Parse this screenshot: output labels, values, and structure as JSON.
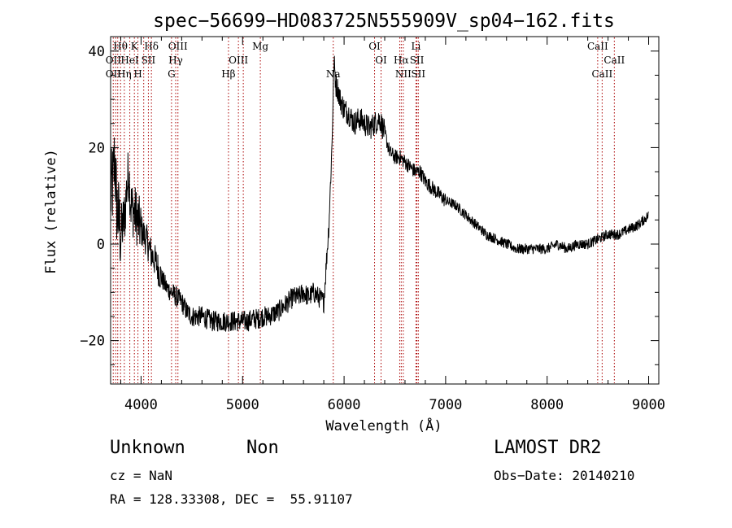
{
  "chart_data": {
    "type": "line",
    "title": "spec−56699−HD083725N555909V_sp04−162.fits",
    "xlabel": "Wavelength (Å)",
    "ylabel": "Flux (relative)",
    "xlim": [
      3700,
      9100
    ],
    "ylim": [
      -29,
      43
    ],
    "grid": false,
    "xticks": [
      {
        "value": 4000,
        "label": "4000"
      },
      {
        "value": 5000,
        "label": "5000"
      },
      {
        "value": 6000,
        "label": "6000"
      },
      {
        "value": 7000,
        "label": "7000"
      },
      {
        "value": 8000,
        "label": "8000"
      },
      {
        "value": 9000,
        "label": "9000"
      }
    ],
    "yticks": [
      {
        "value": -20,
        "label": "−20"
      },
      {
        "value": 0,
        "label": "0"
      },
      {
        "value": 20,
        "label": "20"
      },
      {
        "value": 40,
        "label": "40"
      }
    ],
    "lines": [
      3726,
      3750,
      3770,
      3798,
      3835,
      3889,
      3934,
      3969,
      4026,
      4072,
      4102,
      4300,
      4341,
      4363,
      4861,
      4959,
      5007,
      5175,
      5893,
      6300,
      6364,
      6548,
      6563,
      6583,
      6708,
      6717,
      6731,
      8498,
      8542,
      8662
    ],
    "line_labels": [
      {
        "text": "Hθ",
        "x": 3797,
        "row": 0
      },
      {
        "text": "K",
        "x": 3934,
        "row": 0
      },
      {
        "text": "Hδ",
        "x": 4102,
        "row": 0
      },
      {
        "text": "OIII",
        "x": 4363,
        "row": 0
      },
      {
        "text": "Mg",
        "x": 5175,
        "row": 0
      },
      {
        "text": "OI",
        "x": 6300,
        "row": 0
      },
      {
        "text": "Li",
        "x": 6708,
        "row": 0
      },
      {
        "text": "CaII",
        "x": 8498,
        "row": 0
      },
      {
        "text": "OII",
        "x": 3727,
        "row": 1
      },
      {
        "text": "HeI",
        "x": 3889,
        "row": 1
      },
      {
        "text": "SII",
        "x": 4072,
        "row": 1
      },
      {
        "text": "Hγ",
        "x": 4341,
        "row": 1
      },
      {
        "text": "OIII",
        "x": 4959,
        "row": 1
      },
      {
        "text": "OI",
        "x": 6364,
        "row": 1
      },
      {
        "text": "Hα",
        "x": 6563,
        "row": 1
      },
      {
        "text": "SII",
        "x": 6717,
        "row": 1
      },
      {
        "text": "CaII",
        "x": 8662,
        "row": 1
      },
      {
        "text": "OII",
        "x": 3727,
        "row": 2
      },
      {
        "text": "Hη",
        "x": 3835,
        "row": 2
      },
      {
        "text": "H",
        "x": 3969,
        "row": 2
      },
      {
        "text": "G",
        "x": 4300,
        "row": 2
      },
      {
        "text": "Hβ",
        "x": 4861,
        "row": 2
      },
      {
        "text": "Na",
        "x": 5893,
        "row": 2
      },
      {
        "text": "NII",
        "x": 6583,
        "row": 2
      },
      {
        "text": "SII",
        "x": 6731,
        "row": 2
      },
      {
        "text": "CaII",
        "x": 8542,
        "row": 2
      }
    ],
    "series": [
      {
        "x": [
          3700,
          3720,
          3740,
          3760,
          3780,
          3800,
          3820,
          3840,
          3860,
          3880,
          3900,
          3950,
          4000,
          4050,
          4100,
          4150,
          4200,
          4250,
          4300,
          4350,
          4400,
          4450,
          4500,
          4550,
          4600,
          4650,
          4700,
          4750,
          4800,
          4850,
          4900,
          4950,
          5000,
          5050,
          5100,
          5150,
          5200,
          5250,
          5300,
          5350,
          5400,
          5450,
          5500,
          5550,
          5600,
          5650,
          5700,
          5750,
          5800,
          5850,
          5880,
          5900,
          5920,
          5940,
          5960,
          5980,
          6000,
          6050,
          6100,
          6150,
          6200,
          6250,
          6300,
          6350,
          6400,
          6450,
          6500,
          6550,
          6600,
          6650,
          6700,
          6750,
          6800,
          6850,
          6900,
          6950,
          7000,
          7100,
          7200,
          7300,
          7400,
          7500,
          7600,
          7700,
          7800,
          7900,
          8000,
          8100,
          8200,
          8300,
          8400,
          8500,
          8600,
          8700,
          8800,
          8900,
          9000
        ],
        "y": [
          10,
          12,
          18,
          8,
          5,
          2,
          4,
          6,
          12,
          15,
          8,
          6,
          3,
          1,
          -2,
          -4,
          -7,
          -9,
          -10,
          -11,
          -12,
          -14,
          -15,
          -15,
          -15,
          -15.5,
          -16,
          -16,
          -16,
          -16,
          -16,
          -16,
          -16,
          -16,
          -15.5,
          -15.5,
          -15,
          -15,
          -14.5,
          -14,
          -13,
          -12,
          -11,
          -11,
          -10,
          -11,
          -10,
          -11,
          -12,
          4,
          20,
          38,
          33,
          32,
          30,
          29,
          28,
          27,
          25,
          26,
          25,
          24,
          25,
          26,
          23,
          19,
          18,
          18,
          17,
          16,
          15,
          15,
          13,
          12,
          11,
          10,
          9,
          8,
          6,
          4,
          2,
          1,
          0,
          -1,
          -1,
          -1,
          -1,
          0,
          -1,
          0,
          0,
          1,
          2,
          2,
          3,
          4,
          6
        ]
      }
    ]
  },
  "info": {
    "object_class": "Unknown",
    "object_subclass": "Non",
    "survey": "LAMOST DR2",
    "cz": "cz = NaN",
    "obs_date": "Obs−Date: 20140210",
    "coords": "RA = 128.33308, DEC =  55.91107"
  }
}
